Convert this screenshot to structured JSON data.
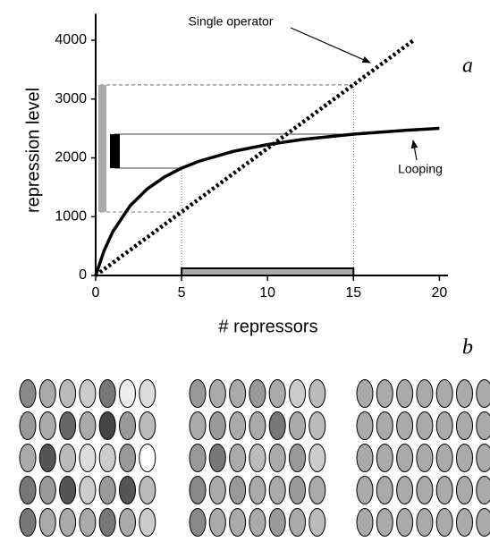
{
  "chart_data": {
    "type": "line",
    "xlabel": "# repressors",
    "ylabel": "repression level",
    "xlim": [
      0,
      20.5
    ],
    "ylim": [
      0,
      4450
    ],
    "xticks": [
      0,
      5,
      10,
      15,
      20
    ],
    "yticks": [
      0,
      1000,
      2000,
      3000,
      4000
    ],
    "series": [
      {
        "name": "Single operator",
        "color": "#000000",
        "style": "dotted",
        "x": [
          0,
          18.5
        ],
        "values": [
          0,
          4000
        ]
      },
      {
        "name": "Looping",
        "color": "#000000",
        "style": "solid",
        "x": [
          0,
          0.5,
          1,
          2,
          3,
          4,
          5,
          6,
          8,
          10,
          12,
          15,
          18,
          20
        ],
        "values": [
          0,
          430,
          747,
          1184,
          1471,
          1674,
          1825,
          1941,
          2110,
          2226,
          2311,
          2403,
          2467,
          2501
        ]
      }
    ],
    "ranges": {
      "x_range": [
        5,
        15
      ],
      "single_range": [
        1080,
        3240
      ],
      "looping_range": [
        1825,
        2403
      ]
    },
    "panel_labels": [
      "a",
      "b"
    ],
    "panels": [
      {
        "cells": [
          [
            "#888",
            "#aaa",
            "#bbb",
            "#ccc",
            "#777",
            "#eee",
            "#ddd"
          ],
          [
            "#999",
            "#aaa",
            "#666",
            "#aaa",
            "#444",
            "#999",
            "#bbb"
          ],
          [
            "#aaa",
            "#555",
            "#bbb",
            "#ddd",
            "#ccc",
            "#999",
            "#fff"
          ],
          [
            "#777",
            "#999",
            "#555",
            "#ccc",
            "#999",
            "#555",
            "#bbb"
          ],
          [
            "#777",
            "#aaa",
            "#aaa",
            "#aaa",
            "#777",
            "#aaa",
            "#ccc"
          ]
        ]
      },
      {
        "cells": [
          [
            "#999",
            "#aaa",
            "#aaa",
            "#999",
            "#aaa",
            "#ccc",
            "#bbb"
          ],
          [
            "#aaa",
            "#999",
            "#aaa",
            "#aaa",
            "#777",
            "#aaa",
            "#bbb"
          ],
          [
            "#999",
            "#777",
            "#aaa",
            "#bbb",
            "#aaa",
            "#999",
            "#ccc"
          ],
          [
            "#888",
            "#aaa",
            "#999",
            "#aaa",
            "#aaa",
            "#999",
            "#aaa"
          ],
          [
            "#888",
            "#aaa",
            "#aaa",
            "#aaa",
            "#999",
            "#aaa",
            "#bbb"
          ]
        ]
      },
      {
        "cells": [
          [
            "#aaa",
            "#aaa",
            "#aaa",
            "#aaa",
            "#aaa",
            "#aaa",
            "#aaa"
          ],
          [
            "#aaa",
            "#aaa",
            "#aaa",
            "#aaa",
            "#aaa",
            "#aaa",
            "#aaa"
          ],
          [
            "#aaa",
            "#aaa",
            "#aaa",
            "#aaa",
            "#aaa",
            "#aaa",
            "#aaa"
          ],
          [
            "#aaa",
            "#aaa",
            "#aaa",
            "#aaa",
            "#aaa",
            "#aaa",
            "#aaa"
          ],
          [
            "#aaa",
            "#aaa",
            "#aaa",
            "#aaa",
            "#aaa",
            "#aaa",
            "#aaa"
          ]
        ]
      }
    ]
  }
}
